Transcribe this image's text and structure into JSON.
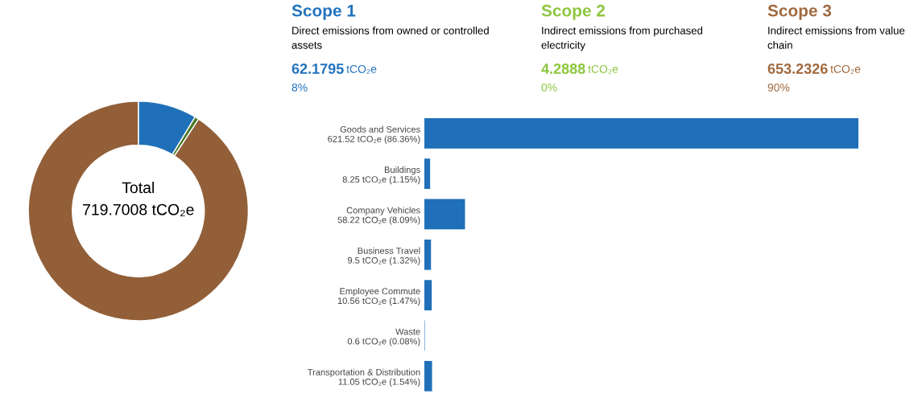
{
  "chart_data": [
    {
      "type": "donut",
      "categories": [
        null,
        null,
        null
      ],
      "values": [
        8.6394,
        0.5959,
        90.7647
      ],
      "colors": [
        "#1f70b8",
        "#4a7a2a",
        "#925f38"
      ],
      "annotations": [
        "Total",
        "719.7008 tCO₂e"
      ]
    },
    {
      "type": "other",
      "colors": [
        "#2172bd",
        "#8dc63f",
        "#a0693f"
      ],
      "annotations": [
        "Scope 1",
        "Direct emissions from owned or controlled\nassets",
        "62.1795",
        "tCO₂e",
        "8%",
        "Scope 2",
        "Indirect emissions from purchased\nelectricity",
        "4.2888",
        "tCO₂e",
        "0%",
        "Scope 3",
        "Indirect emissions from value\nchain",
        "653.2326",
        "tCO₂e",
        "90%"
      ]
    },
    {
      "type": "bar",
      "orientation": "horizontal",
      "color": "#1f70b8",
      "tick_labels": "y",
      "categories": [
        "Goods and Services",
        "Buildings",
        "Company Vehicles",
        "Business Travel",
        "Employee Commute",
        "Waste",
        "Transportation & Distribution"
      ],
      "values": [
        621.52,
        8.25,
        58.22,
        9.5,
        10.56,
        0.6,
        11.05
      ],
      "value_labels": [
        "621.52 tCO₂e (86.36%)",
        "8.25 tCO₂e (1.15%)",
        "58.22 tCO₂e (8.09%)",
        "9.5 tCO₂e (1.32%)",
        "10.56 tCO₂e (1.47%)",
        "0.6 tCO₂e (0.08%)",
        "11.05 tCO₂e (1.54%)"
      ]
    }
  ]
}
